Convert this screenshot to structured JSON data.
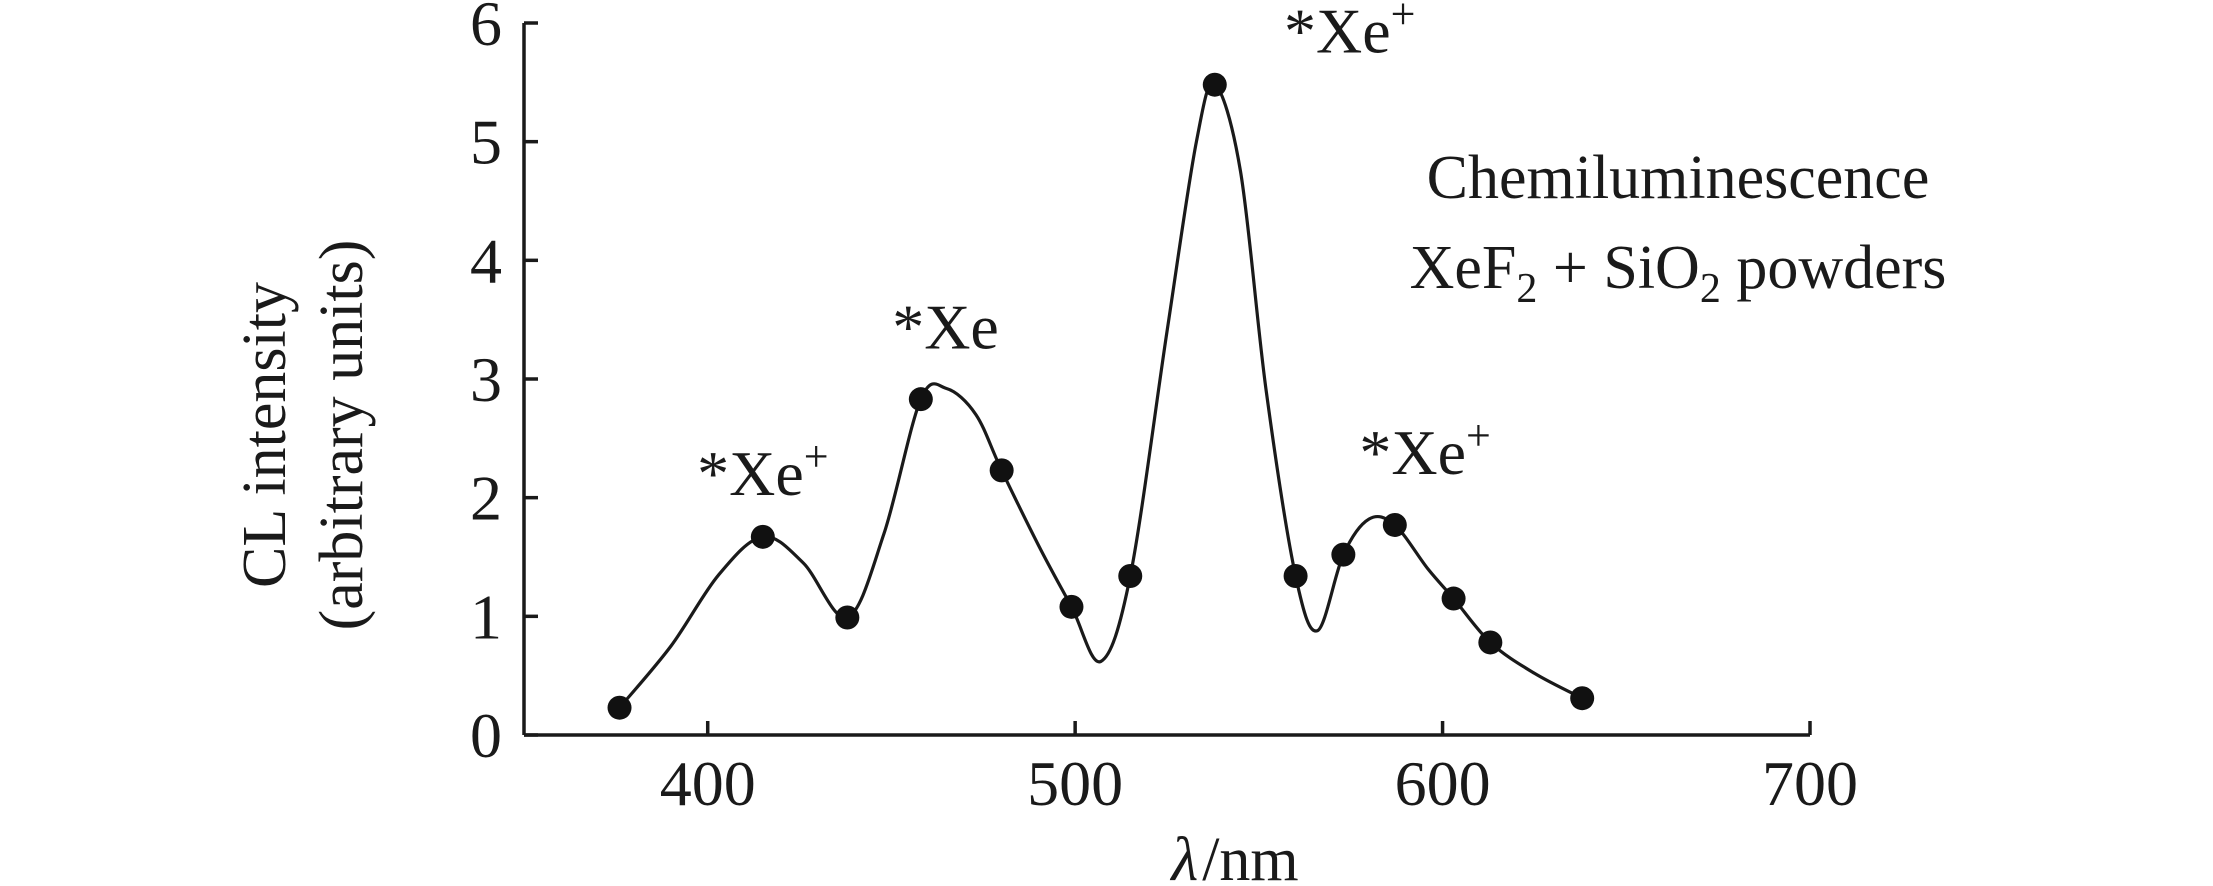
{
  "chart_data": {
    "type": "line",
    "title": "",
    "annotation_lines": [
      "Chemiluminescence",
      "XeF",
      "2",
      " + SiO",
      "2",
      " powders"
    ],
    "xlabel": {
      "symbol": "λ",
      "unit": "/nm"
    },
    "ylabel": [
      "CL intensity",
      "(arbitrary units)"
    ],
    "xlim": [
      350,
      700
    ],
    "ylim": [
      0,
      6
    ],
    "xticks": [
      400,
      500,
      600,
      700
    ],
    "yticks": [
      0,
      1,
      2,
      3,
      4,
      5,
      6
    ],
    "grid": false,
    "series": [
      {
        "points": [
          {
            "x": 376,
            "y": 0.23
          },
          {
            "x": 415,
            "y": 1.67
          },
          {
            "x": 438,
            "y": 0.99
          },
          {
            "x": 458,
            "y": 2.83
          },
          {
            "x": 480,
            "y": 2.23
          },
          {
            "x": 499,
            "y": 1.08
          },
          {
            "x": 515,
            "y": 1.34
          },
          {
            "x": 538,
            "y": 5.48
          },
          {
            "x": 560,
            "y": 1.34
          },
          {
            "x": 573,
            "y": 1.52
          },
          {
            "x": 587,
            "y": 1.77
          },
          {
            "x": 603,
            "y": 1.15
          },
          {
            "x": 613,
            "y": 0.78
          },
          {
            "x": 638,
            "y": 0.31
          }
        ],
        "curve": [
          [
            376,
            0.23
          ],
          [
            390,
            0.75
          ],
          [
            403,
            1.35
          ],
          [
            415,
            1.67
          ],
          [
            426,
            1.45
          ],
          [
            438,
            0.99
          ],
          [
            448,
            1.7
          ],
          [
            458,
            2.83
          ],
          [
            465,
            2.92
          ],
          [
            473,
            2.7
          ],
          [
            480,
            2.23
          ],
          [
            490,
            1.6
          ],
          [
            499,
            1.08
          ],
          [
            507,
            0.62
          ],
          [
            515,
            1.34
          ],
          [
            525,
            3.4
          ],
          [
            533,
            5.0
          ],
          [
            538,
            5.48
          ],
          [
            545,
            4.75
          ],
          [
            552,
            2.9
          ],
          [
            560,
            1.34
          ],
          [
            566,
            0.88
          ],
          [
            573,
            1.52
          ],
          [
            580,
            1.82
          ],
          [
            587,
            1.77
          ],
          [
            596,
            1.4
          ],
          [
            603,
            1.15
          ],
          [
            613,
            0.78
          ],
          [
            625,
            0.52
          ],
          [
            638,
            0.31
          ]
        ]
      }
    ],
    "peak_labels": [
      {
        "text": "*Xe",
        "sup": "+",
        "x": 415,
        "y": 1.67
      },
      {
        "text": "*Xe",
        "sup": "",
        "x": 462,
        "y": 2.92
      },
      {
        "text": "*Xe",
        "sup": "+",
        "x": 538,
        "y": 5.48
      },
      {
        "text": "*Xe",
        "sup": "+",
        "x": 583,
        "y": 1.82
      }
    ]
  }
}
